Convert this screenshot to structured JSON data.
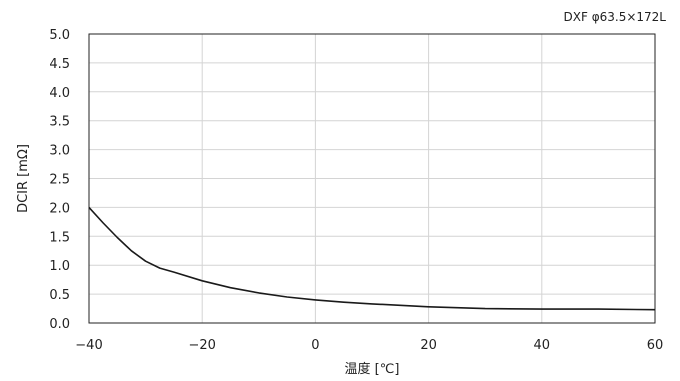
{
  "chart_data": {
    "type": "line",
    "annotation": "DXF φ63.5×172L",
    "xlabel": "温度 [℃]",
    "ylabel": "DCIR [mΩ]",
    "xlim": [
      -40,
      60
    ],
    "ylim": [
      0,
      5
    ],
    "x_ticks": [
      "−40",
      "−20",
      "0",
      "20",
      "40",
      "60"
    ],
    "y_ticks": [
      "0.0",
      "0.5",
      "1.0",
      "1.5",
      "2.0",
      "2.5",
      "3.0",
      "3.5",
      "4.0",
      "4.5",
      "5.0"
    ],
    "grid": true,
    "legend": "none",
    "series": [
      {
        "color": "#1a1a1a",
        "x": [
          -40,
          -37.5,
          -35,
          -32.5,
          -30,
          -27.5,
          -25,
          -20,
          -15,
          -10,
          -5,
          0,
          5,
          10,
          20,
          30,
          40,
          50,
          60
        ],
        "y": [
          2.0,
          1.73,
          1.48,
          1.25,
          1.07,
          0.95,
          0.88,
          0.73,
          0.61,
          0.52,
          0.45,
          0.4,
          0.36,
          0.33,
          0.28,
          0.25,
          0.24,
          0.24,
          0.23
        ]
      }
    ]
  }
}
